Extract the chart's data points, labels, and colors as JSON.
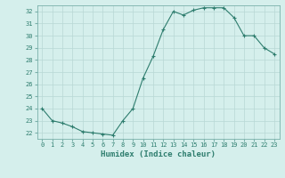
{
  "x": [
    0,
    1,
    2,
    3,
    4,
    5,
    6,
    7,
    8,
    9,
    10,
    11,
    12,
    13,
    14,
    15,
    16,
    17,
    18,
    19,
    20,
    21,
    22,
    23
  ],
  "y": [
    24.0,
    23.0,
    22.8,
    22.5,
    22.1,
    22.0,
    21.9,
    21.8,
    23.0,
    24.0,
    26.5,
    28.3,
    30.5,
    32.0,
    31.7,
    32.1,
    32.3,
    32.3,
    32.3,
    31.5,
    30.0,
    30.0,
    29.0,
    28.5
  ],
  "line_color": "#2e7d6e",
  "marker": "+",
  "marker_size": 3,
  "bg_color": "#d5efec",
  "grid_color": "#b8d8d4",
  "xlabel": "Humidex (Indice chaleur)",
  "xlim": [
    -0.5,
    23.5
  ],
  "ylim": [
    21.5,
    32.5
  ],
  "yticks": [
    22,
    23,
    24,
    25,
    26,
    27,
    28,
    29,
    30,
    31,
    32
  ],
  "xticks": [
    0,
    1,
    2,
    3,
    4,
    5,
    6,
    7,
    8,
    9,
    10,
    11,
    12,
    13,
    14,
    15,
    16,
    17,
    18,
    19,
    20,
    21,
    22,
    23
  ],
  "tick_color": "#2e7d6e",
  "label_color": "#2e7d6e",
  "spine_color": "#7ab0aa"
}
